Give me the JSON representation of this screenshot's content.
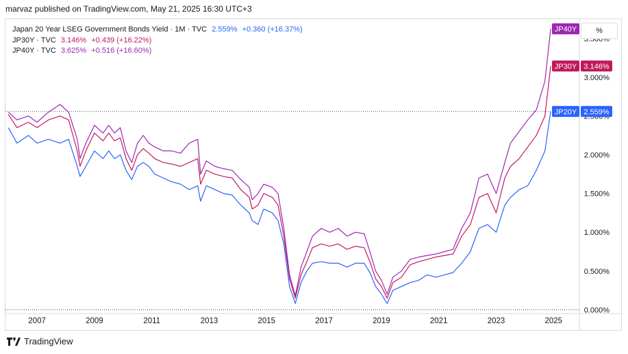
{
  "header": {
    "published": "marvaz published on TradingView.com, May 21, 2025 16:30 UTC+3"
  },
  "legend": [
    {
      "name": "Japan 20 Year LSEG Government Bonds Yield · 1M · TVC",
      "value": "2.559%",
      "change": "+0.360 (+16.37%)",
      "color": "#2962ff"
    },
    {
      "name": "JP30Y · TVC",
      "value": "3.146%",
      "change": "+0.439 (+16.22%)",
      "color": "#c2185b"
    },
    {
      "name": "JP40Y · TVC",
      "value": "3.625%",
      "change": "+0.516 (+16.60%)",
      "color": "#9c27b0"
    }
  ],
  "toolbar": {
    "percent_label": "%"
  },
  "footer": {
    "brand": "TradingView"
  },
  "chart_data": {
    "type": "line",
    "x_ticks": [
      "2007",
      "2009",
      "2011",
      "2013",
      "2015",
      "2017",
      "2019",
      "2021",
      "2023",
      "2025"
    ],
    "y_ticks": [
      "0.000%",
      "0.500%",
      "1.000%",
      "1.500%",
      "2.000%",
      "2.500%",
      "3.000%",
      "3.500%"
    ],
    "ylim": [
      -0.05,
      3.75
    ],
    "xlim": [
      2006.4,
      2026.4
    ],
    "series": [
      {
        "name": "JP20Y",
        "tag": "JP20Y",
        "last": "2.559%",
        "color": "#2962ff",
        "points": [
          [
            2006.5,
            2.35
          ],
          [
            2006.8,
            2.15
          ],
          [
            2007.2,
            2.25
          ],
          [
            2007.5,
            2.15
          ],
          [
            2007.9,
            2.2
          ],
          [
            2008.3,
            2.15
          ],
          [
            2008.6,
            2.2
          ],
          [
            2008.9,
            1.85
          ],
          [
            2009.0,
            1.72
          ],
          [
            2009.2,
            1.85
          ],
          [
            2009.5,
            2.05
          ],
          [
            2009.8,
            1.95
          ],
          [
            2010.0,
            2.05
          ],
          [
            2010.2,
            1.95
          ],
          [
            2010.4,
            2.0
          ],
          [
            2010.6,
            1.8
          ],
          [
            2010.8,
            1.68
          ],
          [
            2011.0,
            1.85
          ],
          [
            2011.2,
            1.9
          ],
          [
            2011.4,
            1.85
          ],
          [
            2011.6,
            1.75
          ],
          [
            2011.9,
            1.7
          ],
          [
            2012.2,
            1.65
          ],
          [
            2012.5,
            1.62
          ],
          [
            2012.8,
            1.55
          ],
          [
            2013.1,
            1.6
          ],
          [
            2013.2,
            1.4
          ],
          [
            2013.4,
            1.6
          ],
          [
            2013.7,
            1.55
          ],
          [
            2014.0,
            1.5
          ],
          [
            2014.3,
            1.48
          ],
          [
            2014.6,
            1.35
          ],
          [
            2014.9,
            1.25
          ],
          [
            2015.0,
            1.15
          ],
          [
            2015.2,
            1.1
          ],
          [
            2015.4,
            1.3
          ],
          [
            2015.7,
            1.25
          ],
          [
            2015.9,
            1.15
          ],
          [
            2016.1,
            0.85
          ],
          [
            2016.3,
            0.3
          ],
          [
            2016.5,
            0.08
          ],
          [
            2016.7,
            0.35
          ],
          [
            2016.9,
            0.5
          ],
          [
            2017.1,
            0.6
          ],
          [
            2017.4,
            0.62
          ],
          [
            2017.7,
            0.6
          ],
          [
            2018.0,
            0.6
          ],
          [
            2018.3,
            0.55
          ],
          [
            2018.6,
            0.6
          ],
          [
            2018.9,
            0.6
          ],
          [
            2019.1,
            0.48
          ],
          [
            2019.3,
            0.3
          ],
          [
            2019.5,
            0.2
          ],
          [
            2019.7,
            0.08
          ],
          [
            2019.9,
            0.25
          ],
          [
            2020.2,
            0.3
          ],
          [
            2020.5,
            0.35
          ],
          [
            2020.8,
            0.38
          ],
          [
            2021.1,
            0.45
          ],
          [
            2021.4,
            0.42
          ],
          [
            2021.7,
            0.45
          ],
          [
            2022.0,
            0.48
          ],
          [
            2022.3,
            0.6
          ],
          [
            2022.6,
            0.75
          ],
          [
            2022.9,
            1.05
          ],
          [
            2023.2,
            1.1
          ],
          [
            2023.5,
            1.0
          ],
          [
            2023.8,
            1.35
          ],
          [
            2024.0,
            1.45
          ],
          [
            2024.3,
            1.55
          ],
          [
            2024.6,
            1.6
          ],
          [
            2024.9,
            1.8
          ],
          [
            2025.2,
            2.05
          ],
          [
            2025.4,
            2.559
          ]
        ]
      },
      {
        "name": "JP30Y",
        "tag": "JP30Y",
        "last": "3.146%",
        "color": "#c2185b",
        "points": [
          [
            2006.5,
            2.52
          ],
          [
            2006.8,
            2.35
          ],
          [
            2007.2,
            2.42
          ],
          [
            2007.5,
            2.35
          ],
          [
            2007.9,
            2.45
          ],
          [
            2008.3,
            2.5
          ],
          [
            2008.6,
            2.45
          ],
          [
            2008.9,
            2.05
          ],
          [
            2009.0,
            1.85
          ],
          [
            2009.2,
            2.05
          ],
          [
            2009.5,
            2.28
          ],
          [
            2009.8,
            2.18
          ],
          [
            2010.0,
            2.28
          ],
          [
            2010.2,
            2.18
          ],
          [
            2010.4,
            2.22
          ],
          [
            2010.6,
            1.95
          ],
          [
            2010.8,
            1.8
          ],
          [
            2011.0,
            2.0
          ],
          [
            2011.2,
            2.08
          ],
          [
            2011.4,
            2.02
          ],
          [
            2011.6,
            1.95
          ],
          [
            2011.9,
            1.9
          ],
          [
            2012.2,
            1.88
          ],
          [
            2012.5,
            1.85
          ],
          [
            2012.8,
            1.9
          ],
          [
            2013.1,
            1.95
          ],
          [
            2013.2,
            1.62
          ],
          [
            2013.4,
            1.8
          ],
          [
            2013.7,
            1.75
          ],
          [
            2014.0,
            1.72
          ],
          [
            2014.3,
            1.7
          ],
          [
            2014.6,
            1.55
          ],
          [
            2014.9,
            1.45
          ],
          [
            2015.0,
            1.3
          ],
          [
            2015.2,
            1.35
          ],
          [
            2015.4,
            1.5
          ],
          [
            2015.7,
            1.45
          ],
          [
            2015.9,
            1.35
          ],
          [
            2016.1,
            0.95
          ],
          [
            2016.3,
            0.4
          ],
          [
            2016.5,
            0.15
          ],
          [
            2016.7,
            0.45
          ],
          [
            2016.9,
            0.62
          ],
          [
            2017.1,
            0.8
          ],
          [
            2017.4,
            0.85
          ],
          [
            2017.7,
            0.82
          ],
          [
            2018.0,
            0.85
          ],
          [
            2018.3,
            0.78
          ],
          [
            2018.6,
            0.82
          ],
          [
            2018.9,
            0.8
          ],
          [
            2019.1,
            0.62
          ],
          [
            2019.3,
            0.4
          ],
          [
            2019.5,
            0.3
          ],
          [
            2019.7,
            0.15
          ],
          [
            2019.9,
            0.35
          ],
          [
            2020.2,
            0.42
          ],
          [
            2020.5,
            0.58
          ],
          [
            2020.8,
            0.62
          ],
          [
            2021.1,
            0.65
          ],
          [
            2021.4,
            0.68
          ],
          [
            2021.7,
            0.7
          ],
          [
            2022.0,
            0.72
          ],
          [
            2022.3,
            0.95
          ],
          [
            2022.6,
            1.1
          ],
          [
            2022.9,
            1.45
          ],
          [
            2023.2,
            1.5
          ],
          [
            2023.5,
            1.25
          ],
          [
            2023.8,
            1.7
          ],
          [
            2024.0,
            1.85
          ],
          [
            2024.3,
            1.95
          ],
          [
            2024.6,
            2.1
          ],
          [
            2024.9,
            2.25
          ],
          [
            2025.2,
            2.5
          ],
          [
            2025.4,
            3.146
          ]
        ]
      },
      {
        "name": "JP40Y",
        "tag": "JP40Y",
        "last": "3.625%",
        "color": "#9c27b0",
        "points": [
          [
            2006.5,
            2.55
          ],
          [
            2006.8,
            2.45
          ],
          [
            2007.2,
            2.5
          ],
          [
            2007.5,
            2.42
          ],
          [
            2007.9,
            2.55
          ],
          [
            2008.3,
            2.65
          ],
          [
            2008.6,
            2.55
          ],
          [
            2008.9,
            2.2
          ],
          [
            2009.0,
            1.95
          ],
          [
            2009.2,
            2.15
          ],
          [
            2009.5,
            2.38
          ],
          [
            2009.8,
            2.28
          ],
          [
            2010.0,
            2.38
          ],
          [
            2010.2,
            2.28
          ],
          [
            2010.4,
            2.35
          ],
          [
            2010.6,
            2.05
          ],
          [
            2010.8,
            1.9
          ],
          [
            2011.0,
            2.15
          ],
          [
            2011.2,
            2.25
          ],
          [
            2011.4,
            2.15
          ],
          [
            2011.6,
            2.1
          ],
          [
            2011.9,
            2.05
          ],
          [
            2012.2,
            2.05
          ],
          [
            2012.5,
            2.02
          ],
          [
            2012.8,
            2.15
          ],
          [
            2013.1,
            2.2
          ],
          [
            2013.2,
            1.75
          ],
          [
            2013.4,
            1.92
          ],
          [
            2013.7,
            1.85
          ],
          [
            2014.0,
            1.82
          ],
          [
            2014.3,
            1.8
          ],
          [
            2014.6,
            1.68
          ],
          [
            2014.9,
            1.58
          ],
          [
            2015.0,
            1.42
          ],
          [
            2015.2,
            1.5
          ],
          [
            2015.4,
            1.62
          ],
          [
            2015.7,
            1.58
          ],
          [
            2015.9,
            1.5
          ],
          [
            2016.1,
            1.05
          ],
          [
            2016.3,
            0.45
          ],
          [
            2016.5,
            0.18
          ],
          [
            2016.7,
            0.55
          ],
          [
            2016.9,
            0.75
          ],
          [
            2017.1,
            0.95
          ],
          [
            2017.4,
            1.05
          ],
          [
            2017.7,
            1.0
          ],
          [
            2018.0,
            1.05
          ],
          [
            2018.3,
            0.95
          ],
          [
            2018.6,
            1.0
          ],
          [
            2018.9,
            0.98
          ],
          [
            2019.1,
            0.75
          ],
          [
            2019.3,
            0.5
          ],
          [
            2019.5,
            0.38
          ],
          [
            2019.7,
            0.2
          ],
          [
            2019.9,
            0.42
          ],
          [
            2020.2,
            0.5
          ],
          [
            2020.5,
            0.65
          ],
          [
            2020.8,
            0.68
          ],
          [
            2021.1,
            0.7
          ],
          [
            2021.4,
            0.72
          ],
          [
            2021.7,
            0.75
          ],
          [
            2022.0,
            0.78
          ],
          [
            2022.3,
            1.05
          ],
          [
            2022.6,
            1.25
          ],
          [
            2022.9,
            1.7
          ],
          [
            2023.2,
            1.75
          ],
          [
            2023.5,
            1.5
          ],
          [
            2023.8,
            1.9
          ],
          [
            2024.0,
            2.15
          ],
          [
            2024.3,
            2.3
          ],
          [
            2024.6,
            2.45
          ],
          [
            2024.9,
            2.58
          ],
          [
            2025.2,
            2.95
          ],
          [
            2025.4,
            3.625
          ]
        ]
      }
    ],
    "dotted_ref": [
      0,
      2.559
    ],
    "grid": false,
    "legend_position": "top-left"
  }
}
